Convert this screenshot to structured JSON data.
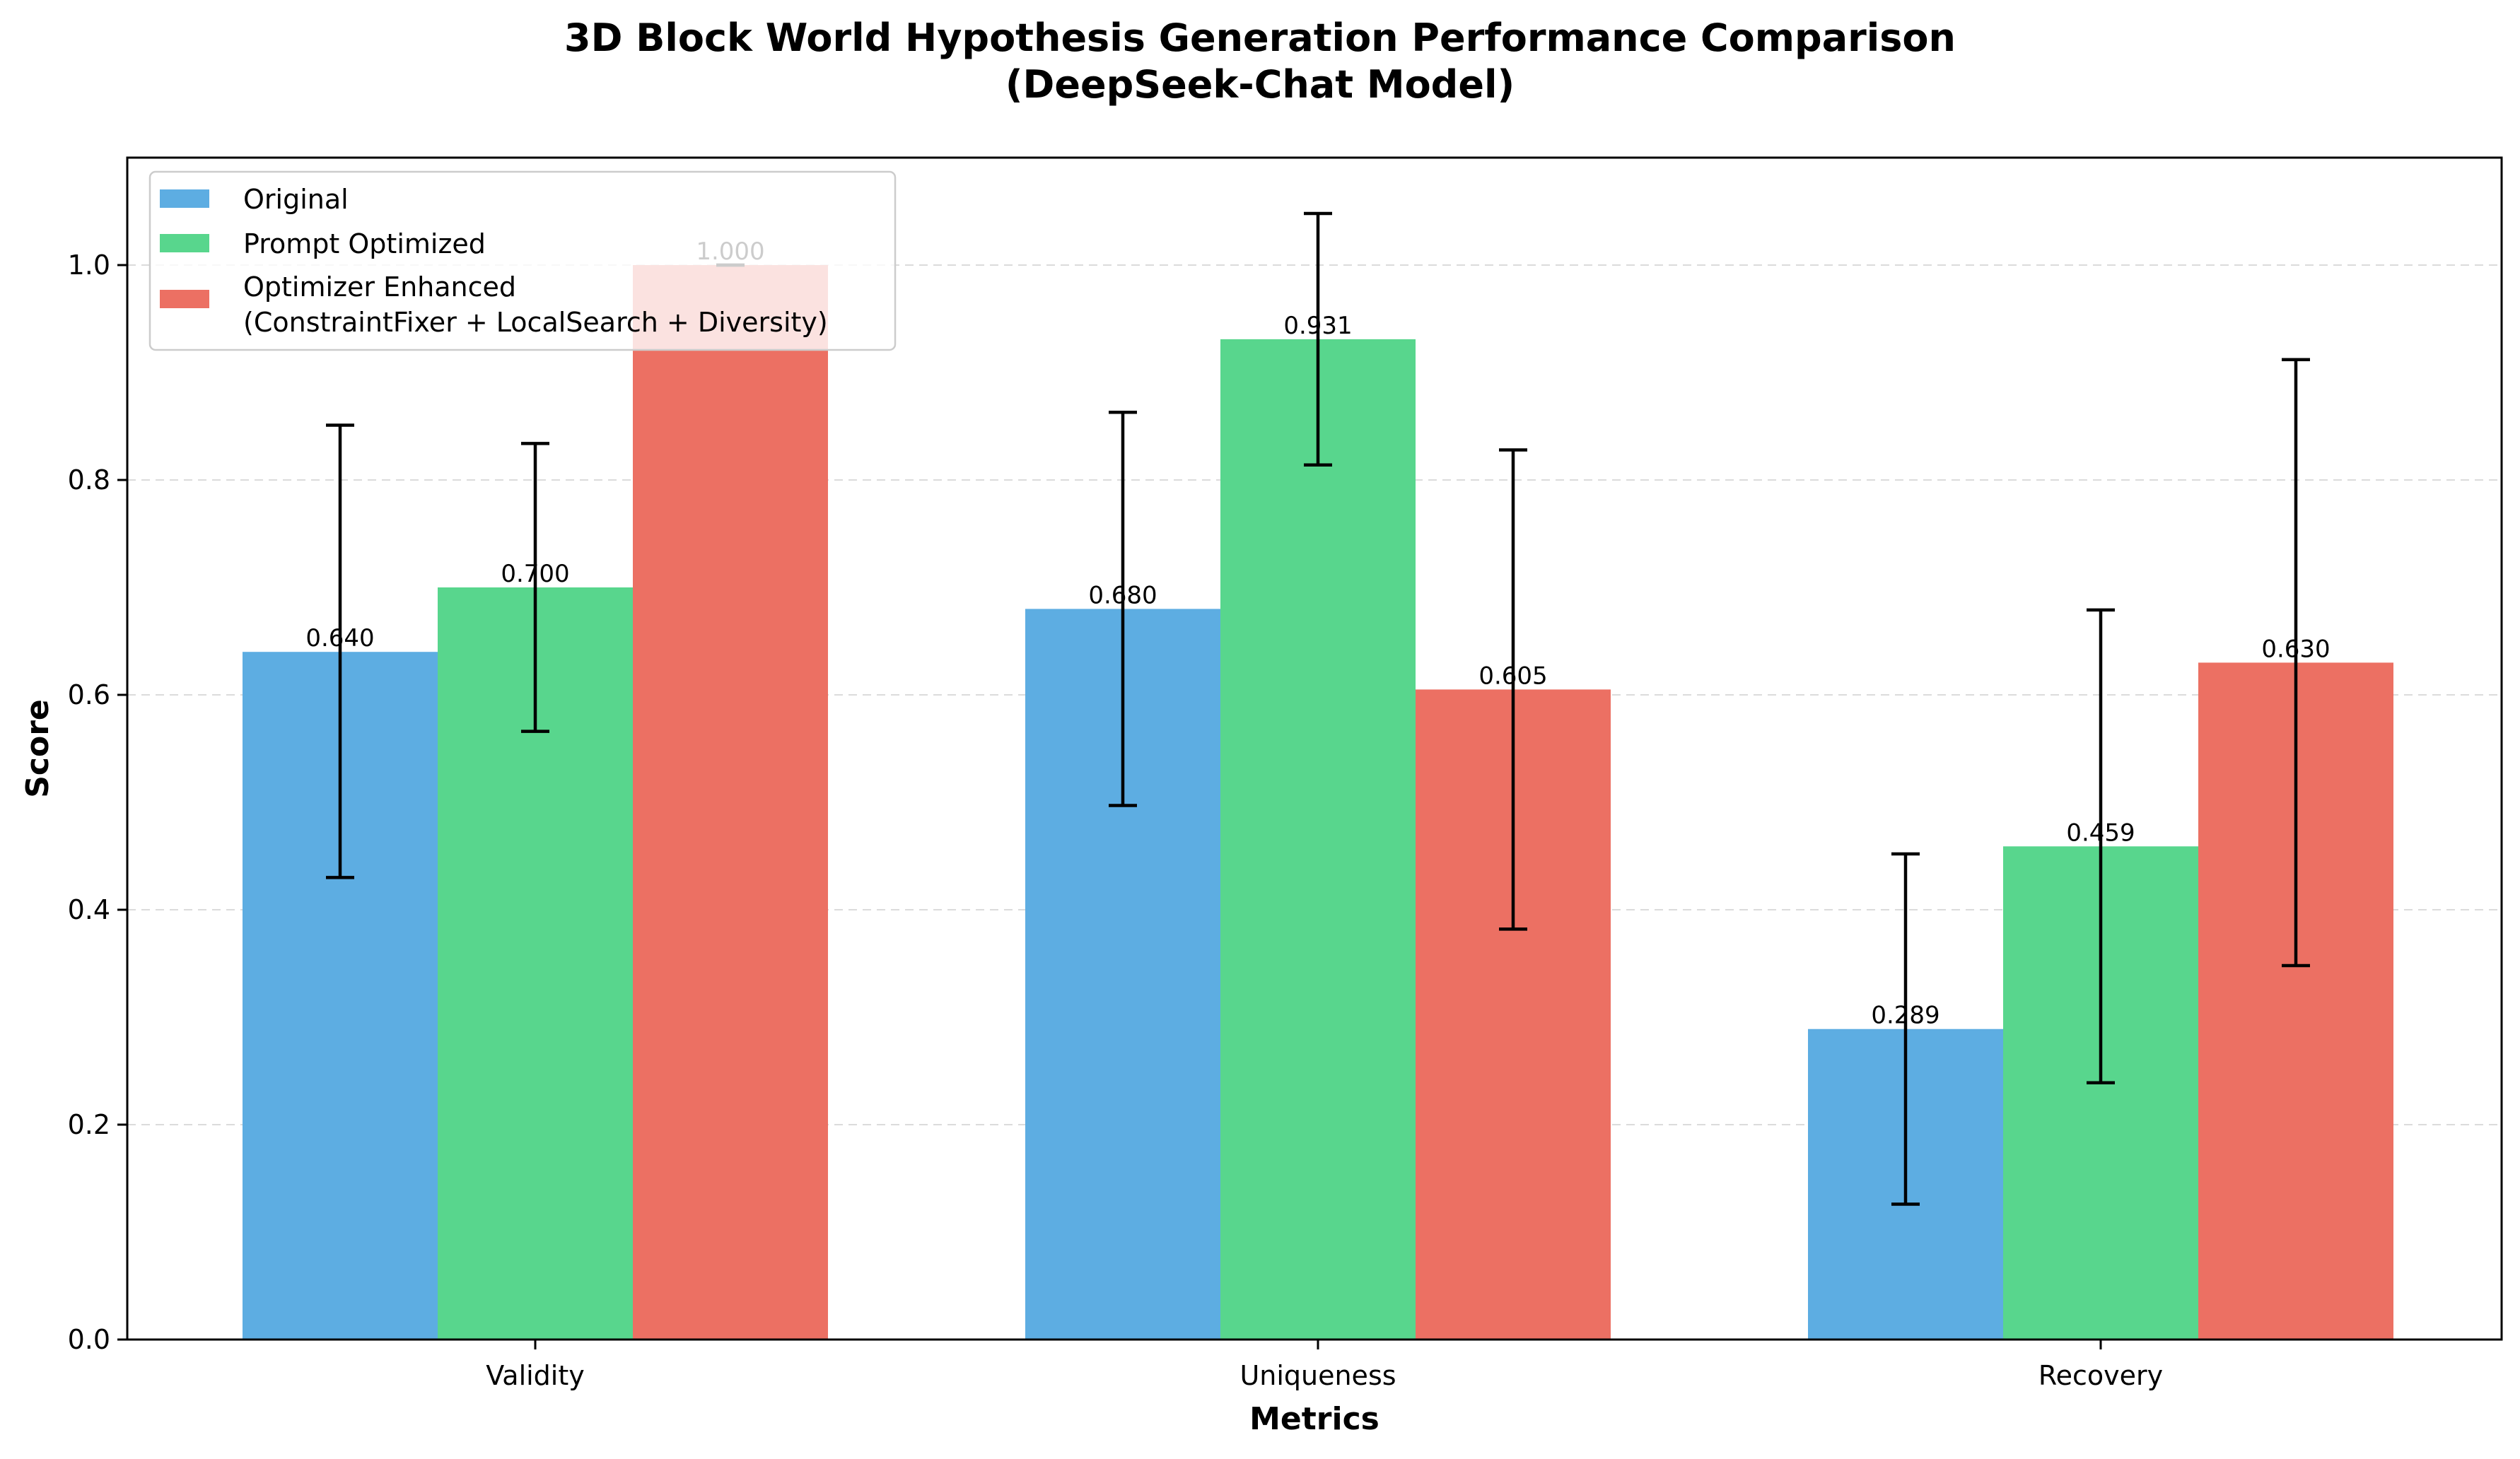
{
  "chart_data": {
    "type": "bar",
    "title": "3D Block World Hypothesis Generation Performance Comparison",
    "subtitle": "(DeepSeek-Chat Model)",
    "xlabel": "Metrics",
    "ylabel": "Score",
    "categories": [
      "Validity",
      "Uniqueness",
      "Recovery"
    ],
    "ylim": [
      0,
      1.1
    ],
    "yticks": [
      "0.0",
      "0.2",
      "0.4",
      "0.6",
      "0.8",
      "1.0"
    ],
    "grid": "horizontal dashed",
    "legend_position": "top-left",
    "series": [
      {
        "name": "Original",
        "color": "#5DADE2",
        "values": [
          0.64,
          0.68,
          0.289
        ],
        "value_labels": [
          "0.640",
          "0.680",
          "0.289"
        ],
        "error_low": [
          0.43,
          0.497,
          0.126
        ],
        "error_high": [
          0.851,
          0.863,
          0.452
        ]
      },
      {
        "name": "Prompt Optimized",
        "color": "#58D68D",
        "values": [
          0.7,
          0.931,
          0.459
        ],
        "value_labels": [
          "0.700",
          "0.931",
          "0.459"
        ],
        "error_low": [
          0.566,
          0.814,
          0.239
        ],
        "error_high": [
          0.834,
          1.048,
          0.679
        ]
      },
      {
        "name": "Optimizer Enhanced",
        "name_line2": "(ConstraintFixer + LocalSearch + Diversity)",
        "color": "#EC7063",
        "values": [
          1.0,
          0.605,
          0.63
        ],
        "value_labels": [
          "1.000",
          "0.605",
          "0.630"
        ],
        "error_low": [
          1.0,
          0.382,
          0.348
        ],
        "error_high": [
          1.0,
          0.828,
          0.912
        ]
      }
    ]
  }
}
